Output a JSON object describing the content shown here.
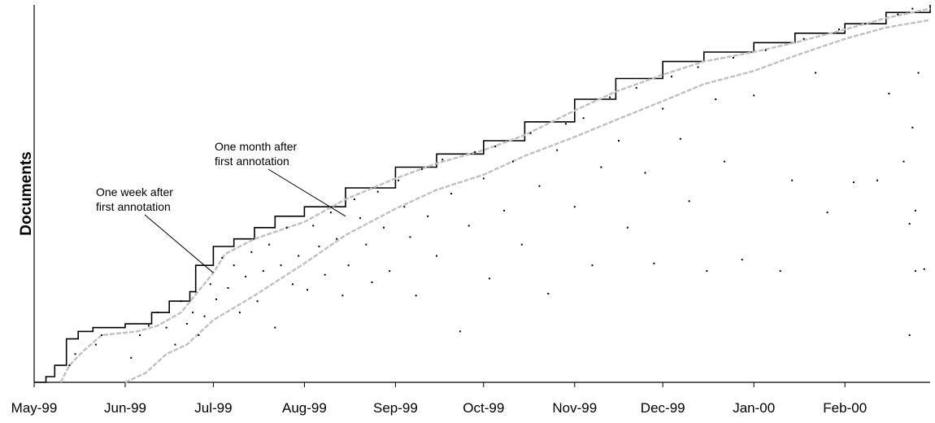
{
  "chart_data": {
    "type": "scatter",
    "title": "",
    "xlabel": "",
    "ylabel": "Documents",
    "x_tick_labels": [
      "May-99",
      "Jun-99",
      "Jul-99",
      "Aug-99",
      "Sep-99",
      "Oct-99",
      "Nov-99",
      "Dec-99",
      "Jan-00",
      "Feb-00"
    ],
    "x_range": [
      "1999-05-01",
      "2000-03-01"
    ],
    "y_range": [
      0,
      100
    ],
    "y_ticks_visible": false,
    "grid": false,
    "legend": "none",
    "colors": {
      "upper_envelope": "#000000",
      "one_week_curve": "#c0c0c0",
      "one_month_curve": "#c0c0c0",
      "annotation_points": "#000000"
    },
    "series": [
      {
        "role": "upper_envelope",
        "style": "black step line",
        "points": [
          {
            "x": "1999-05-01",
            "y": 0.0
          },
          {
            "x": "1999-05-05",
            "y": 1.5
          },
          {
            "x": "1999-05-08",
            "y": 4.5
          },
          {
            "x": "1999-05-12",
            "y": 11.5
          },
          {
            "x": "1999-05-16",
            "y": 13.5
          },
          {
            "x": "1999-05-21",
            "y": 14.5
          },
          {
            "x": "1999-06-01",
            "y": 15.5
          },
          {
            "x": "1999-06-10",
            "y": 18.5
          },
          {
            "x": "1999-06-16",
            "y": 21.5
          },
          {
            "x": "1999-06-23",
            "y": 24.0
          },
          {
            "x": "1999-06-25",
            "y": 31.0
          },
          {
            "x": "1999-07-01",
            "y": 36.0
          },
          {
            "x": "1999-07-08",
            "y": 38.0
          },
          {
            "x": "1999-07-15",
            "y": 41.0
          },
          {
            "x": "1999-07-22",
            "y": 44.0
          },
          {
            "x": "1999-08-01",
            "y": 46.5
          },
          {
            "x": "1999-08-15",
            "y": 51.5
          },
          {
            "x": "1999-09-01",
            "y": 57.0
          },
          {
            "x": "1999-09-15",
            "y": 60.5
          },
          {
            "x": "1999-10-01",
            "y": 64.0
          },
          {
            "x": "1999-10-15",
            "y": 69.0
          },
          {
            "x": "1999-11-01",
            "y": 75.0
          },
          {
            "x": "1999-11-15",
            "y": 80.5
          },
          {
            "x": "1999-12-01",
            "y": 85.0
          },
          {
            "x": "1999-12-15",
            "y": 87.5
          },
          {
            "x": "2000-01-01",
            "y": 90.0
          },
          {
            "x": "2000-01-15",
            "y": 92.5
          },
          {
            "x": "2000-02-01",
            "y": 95.0
          },
          {
            "x": "2000-02-15",
            "y": 98.0
          },
          {
            "x": "2000-03-01",
            "y": 100.0
          }
        ]
      },
      {
        "role": "one_week_curve",
        "style": "grey dashed line",
        "points": [
          {
            "x": "1999-05-10",
            "y": 0.0
          },
          {
            "x": "1999-05-13",
            "y": 4.5
          },
          {
            "x": "1999-05-18",
            "y": 8.5
          },
          {
            "x": "1999-05-24",
            "y": 12.5
          },
          {
            "x": "1999-06-05",
            "y": 13.5
          },
          {
            "x": "1999-06-12",
            "y": 15.0
          },
          {
            "x": "1999-06-20",
            "y": 18.5
          },
          {
            "x": "1999-07-01",
            "y": 29.0
          },
          {
            "x": "1999-07-05",
            "y": 34.0
          },
          {
            "x": "1999-07-15",
            "y": 38.0
          },
          {
            "x": "1999-08-01",
            "y": 42.5
          },
          {
            "x": "1999-08-15",
            "y": 48.5
          },
          {
            "x": "1999-09-01",
            "y": 54.0
          },
          {
            "x": "1999-09-15",
            "y": 58.0
          },
          {
            "x": "1999-10-01",
            "y": 61.5
          },
          {
            "x": "1999-10-15",
            "y": 65.5
          },
          {
            "x": "1999-11-01",
            "y": 72.0
          },
          {
            "x": "1999-11-15",
            "y": 77.0
          },
          {
            "x": "1999-12-01",
            "y": 81.5
          },
          {
            "x": "1999-12-15",
            "y": 85.0
          },
          {
            "x": "2000-01-01",
            "y": 87.5
          },
          {
            "x": "2000-01-15",
            "y": 90.0
          },
          {
            "x": "2000-02-01",
            "y": 93.5
          },
          {
            "x": "2000-02-15",
            "y": 96.5
          },
          {
            "x": "2000-03-01",
            "y": 99.0
          }
        ]
      },
      {
        "role": "one_month_curve",
        "style": "grey dashed line",
        "points": [
          {
            "x": "1999-06-01",
            "y": 0.0
          },
          {
            "x": "1999-06-08",
            "y": 2.5
          },
          {
            "x": "1999-06-15",
            "y": 7.5
          },
          {
            "x": "1999-06-22",
            "y": 10.0
          },
          {
            "x": "1999-07-01",
            "y": 16.5
          },
          {
            "x": "1999-07-15",
            "y": 23.0
          },
          {
            "x": "1999-08-01",
            "y": 31.5
          },
          {
            "x": "1999-08-15",
            "y": 39.0
          },
          {
            "x": "1999-09-01",
            "y": 46.0
          },
          {
            "x": "1999-09-15",
            "y": 51.0
          },
          {
            "x": "1999-10-01",
            "y": 55.0
          },
          {
            "x": "1999-10-15",
            "y": 60.0
          },
          {
            "x": "1999-11-01",
            "y": 65.0
          },
          {
            "x": "1999-11-15",
            "y": 69.5
          },
          {
            "x": "1999-12-01",
            "y": 74.5
          },
          {
            "x": "1999-12-15",
            "y": 79.0
          },
          {
            "x": "2000-01-01",
            "y": 82.5
          },
          {
            "x": "2000-01-15",
            "y": 86.5
          },
          {
            "x": "2000-02-01",
            "y": 91.0
          },
          {
            "x": "2000-02-15",
            "y": 94.0
          },
          {
            "x": "2000-03-01",
            "y": 96.0
          }
        ]
      },
      {
        "role": "annotation_points",
        "style": "black dots",
        "points": [
          {
            "x": "1999-05-13",
            "y": 4.5
          },
          {
            "x": "1999-05-15",
            "y": 7.5
          },
          {
            "x": "1999-05-22",
            "y": 10.0
          },
          {
            "x": "1999-05-24",
            "y": 12.5
          },
          {
            "x": "1999-06-03",
            "y": 6.5
          },
          {
            "x": "1999-06-06",
            "y": 12.5
          },
          {
            "x": "1999-06-09",
            "y": 15.0
          },
          {
            "x": "1999-06-12",
            "y": 18.5
          },
          {
            "x": "1999-06-15",
            "y": 14.5
          },
          {
            "x": "1999-06-18",
            "y": 10.0
          },
          {
            "x": "1999-06-20",
            "y": 21.5
          },
          {
            "x": "1999-06-22",
            "y": 15.5
          },
          {
            "x": "1999-06-24",
            "y": 18.5
          },
          {
            "x": "1999-06-25",
            "y": 24.0
          },
          {
            "x": "1999-06-26",
            "y": 12.5
          },
          {
            "x": "1999-06-28",
            "y": 17.5
          },
          {
            "x": "1999-06-30",
            "y": 26.0
          },
          {
            "x": "1999-07-02",
            "y": 22.0
          },
          {
            "x": "1999-07-04",
            "y": 33.0
          },
          {
            "x": "1999-07-06",
            "y": 25.0
          },
          {
            "x": "1999-07-08",
            "y": 31.0
          },
          {
            "x": "1999-07-10",
            "y": 18.5
          },
          {
            "x": "1999-07-12",
            "y": 28.0
          },
          {
            "x": "1999-07-14",
            "y": 34.5
          },
          {
            "x": "1999-07-16",
            "y": 21.5
          },
          {
            "x": "1999-07-18",
            "y": 29.5
          },
          {
            "x": "1999-07-20",
            "y": 36.5
          },
          {
            "x": "1999-07-22",
            "y": 14.5
          },
          {
            "x": "1999-07-24",
            "y": 31.0
          },
          {
            "x": "1999-07-26",
            "y": 41.0
          },
          {
            "x": "1999-07-28",
            "y": 26.0
          },
          {
            "x": "1999-07-30",
            "y": 33.5
          },
          {
            "x": "1999-08-02",
            "y": 24.5
          },
          {
            "x": "1999-08-04",
            "y": 41.5
          },
          {
            "x": "1999-08-06",
            "y": 36.0
          },
          {
            "x": "1999-08-08",
            "y": 28.5
          },
          {
            "x": "1999-08-10",
            "y": 45.0
          },
          {
            "x": "1999-08-12",
            "y": 38.0
          },
          {
            "x": "1999-08-14",
            "y": 23.0
          },
          {
            "x": "1999-08-16",
            "y": 31.0
          },
          {
            "x": "1999-08-18",
            "y": 48.5
          },
          {
            "x": "1999-08-20",
            "y": 43.5
          },
          {
            "x": "1999-08-22",
            "y": 36.5
          },
          {
            "x": "1999-08-24",
            "y": 26.5
          },
          {
            "x": "1999-08-26",
            "y": 50.5
          },
          {
            "x": "1999-08-28",
            "y": 41.0
          },
          {
            "x": "1999-08-30",
            "y": 29.5
          },
          {
            "x": "1999-09-02",
            "y": 53.5
          },
          {
            "x": "1999-09-04",
            "y": 46.5
          },
          {
            "x": "1999-09-06",
            "y": 38.5
          },
          {
            "x": "1999-09-08",
            "y": 23.0
          },
          {
            "x": "1999-09-10",
            "y": 56.5
          },
          {
            "x": "1999-09-12",
            "y": 44.0
          },
          {
            "x": "1999-09-15",
            "y": 33.5
          },
          {
            "x": "1999-09-17",
            "y": 59.0
          },
          {
            "x": "1999-09-20",
            "y": 50.0
          },
          {
            "x": "1999-09-23",
            "y": 13.5
          },
          {
            "x": "1999-09-26",
            "y": 41.5
          },
          {
            "x": "1999-09-28",
            "y": 61.0
          },
          {
            "x": "1999-10-01",
            "y": 54.0
          },
          {
            "x": "1999-10-03",
            "y": 27.5
          },
          {
            "x": "1999-10-05",
            "y": 62.5
          },
          {
            "x": "1999-10-08",
            "y": 45.5
          },
          {
            "x": "1999-10-11",
            "y": 58.5
          },
          {
            "x": "1999-10-14",
            "y": 36.5
          },
          {
            "x": "1999-10-17",
            "y": 66.0
          },
          {
            "x": "1999-10-20",
            "y": 52.0
          },
          {
            "x": "1999-10-23",
            "y": 23.5
          },
          {
            "x": "1999-10-26",
            "y": 61.5
          },
          {
            "x": "1999-10-29",
            "y": 68.5
          },
          {
            "x": "1999-11-01",
            "y": 46.5
          },
          {
            "x": "1999-11-04",
            "y": 70.0
          },
          {
            "x": "1999-11-07",
            "y": 31.0
          },
          {
            "x": "1999-11-10",
            "y": 57.0
          },
          {
            "x": "1999-11-13",
            "y": 75.5
          },
          {
            "x": "1999-11-16",
            "y": 64.0
          },
          {
            "x": "1999-11-19",
            "y": 41.0
          },
          {
            "x": "1999-11-22",
            "y": 78.0
          },
          {
            "x": "1999-11-25",
            "y": 55.5
          },
          {
            "x": "1999-11-28",
            "y": 31.5
          },
          {
            "x": "1999-12-01",
            "y": 72.5
          },
          {
            "x": "1999-12-04",
            "y": 81.0
          },
          {
            "x": "1999-12-07",
            "y": 64.5
          },
          {
            "x": "1999-12-10",
            "y": 48.0
          },
          {
            "x": "1999-12-13",
            "y": 83.5
          },
          {
            "x": "1999-12-16",
            "y": 29.5
          },
          {
            "x": "1999-12-19",
            "y": 75.0
          },
          {
            "x": "1999-12-22",
            "y": 58.5
          },
          {
            "x": "1999-12-25",
            "y": 86.0
          },
          {
            "x": "1999-12-28",
            "y": 32.5
          },
          {
            "x": "2000-01-01",
            "y": 76.0
          },
          {
            "x": "2000-01-05",
            "y": 88.0
          },
          {
            "x": "2000-01-10",
            "y": 29.5
          },
          {
            "x": "2000-01-14",
            "y": 53.5
          },
          {
            "x": "2000-01-18",
            "y": 91.0
          },
          {
            "x": "2000-01-22",
            "y": 82.0
          },
          {
            "x": "2000-01-26",
            "y": 45.0
          },
          {
            "x": "2000-01-30",
            "y": 93.5
          },
          {
            "x": "2000-02-04",
            "y": 53.0
          },
          {
            "x": "2000-02-08",
            "y": 95.0
          },
          {
            "x": "2000-02-12",
            "y": 53.5
          },
          {
            "x": "2000-02-16",
            "y": 76.5
          },
          {
            "x": "2000-02-19",
            "y": 97.5
          },
          {
            "x": "2000-02-21",
            "y": 58.5
          },
          {
            "x": "2000-02-23",
            "y": 42.0
          },
          {
            "x": "2000-02-23",
            "y": 12.5
          },
          {
            "x": "2000-02-24",
            "y": 99.0
          },
          {
            "x": "2000-02-24",
            "y": 67.5
          },
          {
            "x": "2000-02-25",
            "y": 29.5
          },
          {
            "x": "2000-02-25",
            "y": 45.5
          },
          {
            "x": "2000-02-26",
            "y": 82.0
          },
          {
            "x": "2000-02-28",
            "y": 30.0
          }
        ]
      }
    ],
    "annotations": [
      {
        "text_lines": [
          "One week after",
          "first annotation"
        ],
        "points_to": {
          "x": "1999-07-01",
          "y": 29.0
        }
      },
      {
        "text_lines": [
          "One month after",
          "first annotation"
        ],
        "points_to": {
          "x": "1999-08-15",
          "y": 44.0
        }
      }
    ]
  }
}
